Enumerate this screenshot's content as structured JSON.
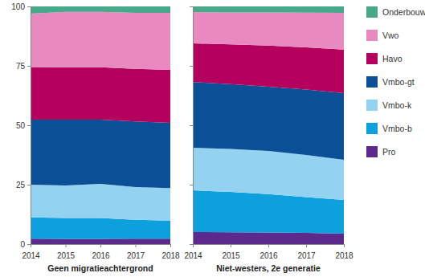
{
  "chart_data": [
    {
      "type": "area",
      "stacked": true,
      "xlabel": "Geen migratieachtergrond",
      "x": [
        2014,
        2015,
        2016,
        2017,
        2018
      ],
      "xlim": [
        2014,
        2018
      ],
      "xticks": [
        2014,
        2015,
        2016,
        2017,
        2018
      ],
      "ylim": [
        0,
        100
      ],
      "yticks": [
        0,
        25,
        50,
        75,
        100
      ],
      "series": [
        {
          "color": "#5b2a8c",
          "values": [
            2.3,
            2.2,
            2.2,
            2.3,
            2.3
          ]
        },
        {
          "color": "#0ea0dd",
          "values": [
            8.9,
            8.8,
            8.8,
            7.9,
            7.6
          ]
        },
        {
          "color": "#93d3f1",
          "values": [
            13.8,
            13.7,
            14.3,
            13.8,
            13.7
          ]
        },
        {
          "color": "#0b4f96",
          "values": [
            27.4,
            27.7,
            27.1,
            27.6,
            27.4
          ]
        },
        {
          "color": "#b3015d",
          "values": [
            21.9,
            22.0,
            22.0,
            22.1,
            22.3
          ]
        },
        {
          "color": "#e88ac0",
          "values": [
            22.7,
            23.3,
            23.3,
            23.6,
            24.0
          ]
        },
        {
          "color": "#48a98a",
          "values": [
            3.0,
            2.3,
            2.3,
            2.7,
            2.7
          ]
        }
      ]
    },
    {
      "type": "area",
      "stacked": true,
      "xlabel": "Niet-westers, 2e generatie",
      "tick_labels": "x",
      "legend": "right",
      "x": [
        2014,
        2015,
        2016,
        2017,
        2018
      ],
      "xlim": [
        2014,
        2018
      ],
      "xticks": [
        2014,
        2015,
        2016,
        2017,
        2018
      ],
      "ylim": [
        0,
        100
      ],
      "yticks": [
        0,
        25,
        50,
        75,
        100
      ],
      "series": [
        {
          "name": "Pro",
          "color": "#5b2a8c",
          "values": [
            5.1,
            5.0,
            4.9,
            4.7,
            4.4
          ]
        },
        {
          "name": "Vmbo-b",
          "color": "#0ea0dd",
          "values": [
            17.5,
            17.0,
            16.1,
            15.1,
            14.2
          ]
        },
        {
          "name": "Vmbo-k",
          "color": "#93d3f1",
          "values": [
            17.9,
            18.0,
            18.2,
            17.7,
            16.9
          ]
        },
        {
          "name": "Vmbo-gt",
          "color": "#0b4f96",
          "values": [
            27.7,
            27.3,
            27.0,
            27.5,
            28.0
          ]
        },
        {
          "name": "Havo",
          "color": "#b3015d",
          "values": [
            16.3,
            16.7,
            17.3,
            17.8,
            18.3
          ]
        },
        {
          "name": "Vwo",
          "color": "#e88ac0",
          "values": [
            13.1,
            13.5,
            14.0,
            14.6,
            15.5
          ]
        },
        {
          "name": "Onderbouw",
          "color": "#48a98a",
          "values": [
            2.4,
            2.5,
            2.5,
            2.6,
            2.7
          ]
        }
      ]
    }
  ]
}
